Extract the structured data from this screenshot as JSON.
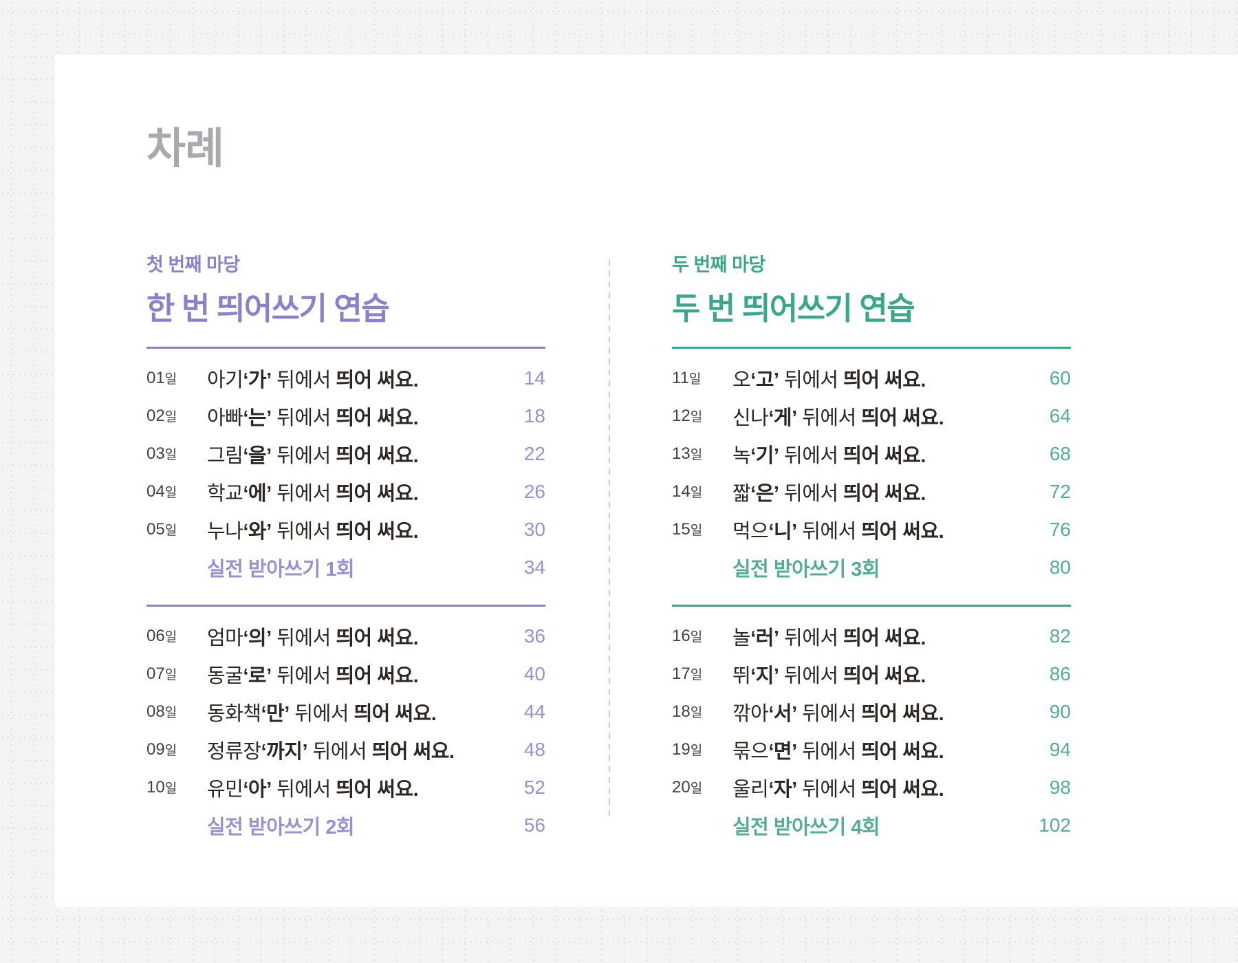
{
  "page": {
    "title": "차례"
  },
  "colors": {
    "page_bg": "#f4f4f3",
    "card_bg": "#ffffff",
    "grid_dot": "#dddddd",
    "title_gray": "#a8aaad",
    "body_text": "#2d2724",
    "day_text": "#414141",
    "divider": "#cbcbcb",
    "purple_accent": "#8b80c9",
    "purple_soft": "#9790d2",
    "green_accent": "#3aa68b",
    "green_soft": "#52ad94"
  },
  "sections": [
    {
      "id": "madang-1",
      "eyebrow": "첫 번째 마당",
      "title": "한 번 띄어쓰기 연습",
      "accent": "#8b80c9",
      "soft": "#9790d2",
      "groups": [
        {
          "items": [
            {
              "day": "01",
              "suffix": "일",
              "word": "아기",
              "particle": "‘가’",
              "middle": " 뒤에서 ",
              "emphasis": "띄어 써요",
              "period": ".",
              "page": "14"
            },
            {
              "day": "02",
              "suffix": "일",
              "word": "아빠",
              "particle": "‘는’",
              "middle": " 뒤에서 ",
              "emphasis": "띄어 써요",
              "period": ".",
              "page": "18"
            },
            {
              "day": "03",
              "suffix": "일",
              "word": "그림",
              "particle": "‘을’",
              "middle": " 뒤에서 ",
              "emphasis": "띄어 써요",
              "period": ".",
              "page": "22"
            },
            {
              "day": "04",
              "suffix": "일",
              "word": "학교",
              "particle": "‘에’",
              "middle": " 뒤에서 ",
              "emphasis": "띄어 써요",
              "period": ".",
              "page": "26"
            },
            {
              "day": "05",
              "suffix": "일",
              "word": "누나",
              "particle": "‘와’",
              "middle": " 뒤에서 ",
              "emphasis": "띄어 써요",
              "period": ".",
              "page": "30"
            }
          ],
          "practice": {
            "label": "실전 받아쓰기 1회",
            "page": "34"
          }
        },
        {
          "items": [
            {
              "day": "06",
              "suffix": "일",
              "word": "엄마",
              "particle": "‘의’",
              "middle": " 뒤에서 ",
              "emphasis": "띄어 써요",
              "period": ".",
              "page": "36"
            },
            {
              "day": "07",
              "suffix": "일",
              "word": "동굴",
              "particle": "‘로’",
              "middle": " 뒤에서 ",
              "emphasis": "띄어 써요",
              "period": ".",
              "page": "40"
            },
            {
              "day": "08",
              "suffix": "일",
              "word": "동화책",
              "particle": "‘만’",
              "middle": " 뒤에서 ",
              "emphasis": "띄어 써요",
              "period": ".",
              "page": "44"
            },
            {
              "day": "09",
              "suffix": "일",
              "word": "정류장",
              "particle": "‘까지’",
              "middle": " 뒤에서 ",
              "emphasis": "띄어 써요",
              "period": ".",
              "page": "48"
            },
            {
              "day": "10",
              "suffix": "일",
              "word": "유민",
              "particle": "‘아’",
              "middle": " 뒤에서 ",
              "emphasis": "띄어 써요",
              "period": ".",
              "page": "52"
            }
          ],
          "practice": {
            "label": "실전 받아쓰기 2회",
            "page": "56"
          }
        }
      ]
    },
    {
      "id": "madang-2",
      "eyebrow": "두 번째 마당",
      "title": "두 번 띄어쓰기 연습",
      "accent": "#3aa68b",
      "soft": "#52ad94",
      "groups": [
        {
          "items": [
            {
              "day": "11",
              "suffix": "일",
              "word": "오",
              "particle": "‘고’",
              "middle": " 뒤에서 ",
              "emphasis": "띄어 써요",
              "period": ".",
              "page": "60"
            },
            {
              "day": "12",
              "suffix": "일",
              "word": "신나",
              "particle": "‘게’",
              "middle": " 뒤에서 ",
              "emphasis": "띄어 써요",
              "period": ".",
              "page": "64"
            },
            {
              "day": "13",
              "suffix": "일",
              "word": "녹",
              "particle": "‘기’",
              "middle": " 뒤에서 ",
              "emphasis": "띄어 써요",
              "period": ".",
              "page": "68"
            },
            {
              "day": "14",
              "suffix": "일",
              "word": "짧",
              "particle": "‘은’",
              "middle": " 뒤에서 ",
              "emphasis": "띄어 써요",
              "period": ".",
              "page": "72"
            },
            {
              "day": "15",
              "suffix": "일",
              "word": "먹으",
              "particle": "‘니’",
              "middle": " 뒤에서 ",
              "emphasis": "띄어 써요",
              "period": ".",
              "page": "76"
            }
          ],
          "practice": {
            "label": "실전 받아쓰기 3회",
            "page": "80"
          }
        },
        {
          "items": [
            {
              "day": "16",
              "suffix": "일",
              "word": "놀",
              "particle": "‘러’",
              "middle": " 뒤에서 ",
              "emphasis": "띄어 써요",
              "period": ".",
              "page": "82"
            },
            {
              "day": "17",
              "suffix": "일",
              "word": "뛰",
              "particle": "‘지’",
              "middle": " 뒤에서 ",
              "emphasis": "띄어 써요",
              "period": ".",
              "page": "86"
            },
            {
              "day": "18",
              "suffix": "일",
              "word": "깎아",
              "particle": "‘서’",
              "middle": " 뒤에서 ",
              "emphasis": "띄어 써요",
              "period": ".",
              "page": "90"
            },
            {
              "day": "19",
              "suffix": "일",
              "word": "묶으",
              "particle": "‘면’",
              "middle": " 뒤에서 ",
              "emphasis": "띄어 써요",
              "period": ".",
              "page": "94"
            },
            {
              "day": "20",
              "suffix": "일",
              "word": "울리",
              "particle": "‘자’",
              "middle": " 뒤에서 ",
              "emphasis": "띄어 써요",
              "period": ".",
              "page": "98"
            }
          ],
          "practice": {
            "label": "실전 받아쓰기 4회",
            "page": "102"
          }
        }
      ]
    }
  ]
}
